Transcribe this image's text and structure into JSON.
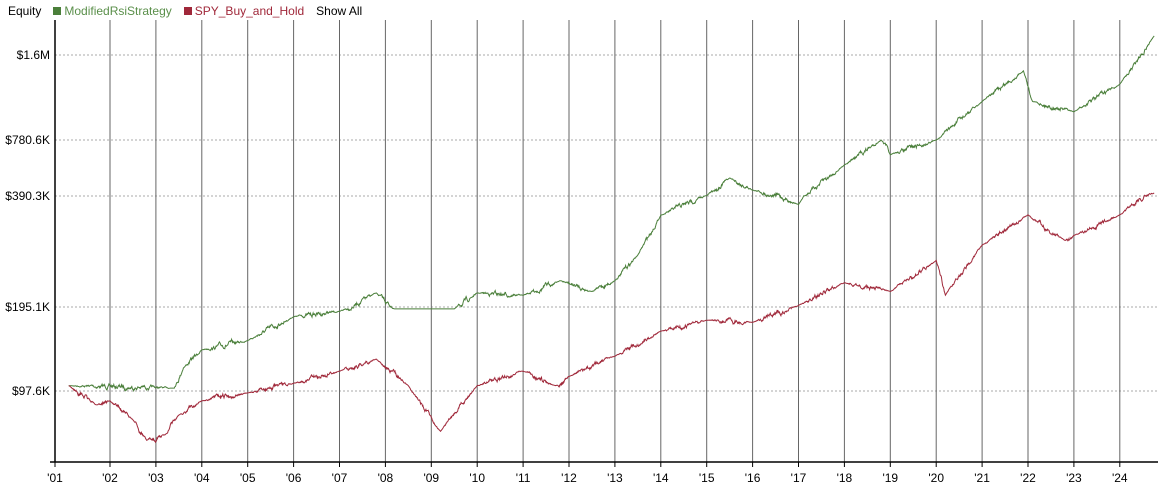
{
  "legend": {
    "title": "Equity",
    "show_all": "Show All"
  },
  "chart_data": {
    "type": "line",
    "title": "Equity",
    "y_scale": "log",
    "grid": {
      "horizontal": "dotted",
      "vertical": "year lines"
    },
    "legend_placement": "top-left",
    "y_ticks": [
      {
        "value": 1600000,
        "label": "$1.6M"
      },
      {
        "value": 780600,
        "label": "$780.6K"
      },
      {
        "value": 390300,
        "label": "$390.3K"
      },
      {
        "value": 195100,
        "label": "$195.1K"
      },
      {
        "value": 97600,
        "label": "$97.6K"
      }
    ],
    "x_ticks": [
      "'01",
      "'02",
      "'03",
      "'04",
      "'05",
      "'06",
      "'07",
      "'08",
      "'09",
      "'10",
      "'11",
      "'12",
      "'13",
      "'14",
      "'15",
      "'16",
      "'17",
      "'18",
      "'19",
      "'20",
      "'21",
      "'22",
      "'23",
      "'24"
    ],
    "series": [
      {
        "name": "ModifiedRsiStrategy",
        "color": "#4a7f3a",
        "points": [
          [
            2001.1,
            102000
          ],
          [
            2003.4,
            100000
          ],
          [
            2003.6,
            118000
          ],
          [
            2004.0,
            137000
          ],
          [
            2005.0,
            148000
          ],
          [
            2006.0,
            180000
          ],
          [
            2007.0,
            188000
          ],
          [
            2007.8,
            213000
          ],
          [
            2008.2,
            192000
          ],
          [
            2009.5,
            192000
          ],
          [
            2010.0,
            213000
          ],
          [
            2011.0,
            210000
          ],
          [
            2011.8,
            230000
          ],
          [
            2012.5,
            215000
          ],
          [
            2013.0,
            230000
          ],
          [
            2013.5,
            270000
          ],
          [
            2014.0,
            346000
          ],
          [
            2015.0,
            392000
          ],
          [
            2015.5,
            488000
          ],
          [
            2016.0,
            420000
          ],
          [
            2017.0,
            370000
          ],
          [
            2018.0,
            573000
          ],
          [
            2018.8,
            780000
          ],
          [
            2019.0,
            650000
          ],
          [
            2020.0,
            780000
          ],
          [
            2021.0,
            1080000
          ],
          [
            2021.9,
            1400000
          ],
          [
            2022.1,
            1080000
          ],
          [
            2023.0,
            990000
          ],
          [
            2024.0,
            1250000
          ],
          [
            2024.75,
            1880000
          ]
        ]
      },
      {
        "name": "SPY_Buy_and_Hold",
        "color": "#a0283a",
        "points": [
          [
            2001.1,
            102000
          ],
          [
            2001.7,
            87000
          ],
          [
            2002.0,
            90000
          ],
          [
            2002.5,
            77000
          ],
          [
            2002.8,
            65000
          ],
          [
            2003.2,
            68000
          ],
          [
            2003.5,
            80000
          ],
          [
            2004.0,
            90000
          ],
          [
            2005.0,
            96000
          ],
          [
            2006.0,
            104000
          ],
          [
            2007.0,
            115000
          ],
          [
            2007.8,
            127000
          ],
          [
            2008.5,
            102000
          ],
          [
            2009.2,
            70000
          ],
          [
            2010.0,
            102000
          ],
          [
            2011.0,
            115000
          ],
          [
            2011.7,
            102000
          ],
          [
            2012.0,
            110000
          ],
          [
            2013.0,
            130000
          ],
          [
            2014.0,
            160000
          ],
          [
            2015.0,
            175000
          ],
          [
            2016.0,
            172000
          ],
          [
            2017.0,
            197000
          ],
          [
            2018.0,
            227000
          ],
          [
            2019.0,
            215000
          ],
          [
            2020.0,
            261000
          ],
          [
            2020.2,
            210000
          ],
          [
            2021.0,
            287000
          ],
          [
            2022.0,
            347000
          ],
          [
            2022.8,
            296000
          ],
          [
            2023.0,
            305000
          ],
          [
            2024.0,
            347000
          ],
          [
            2024.75,
            405000
          ]
        ]
      }
    ]
  }
}
